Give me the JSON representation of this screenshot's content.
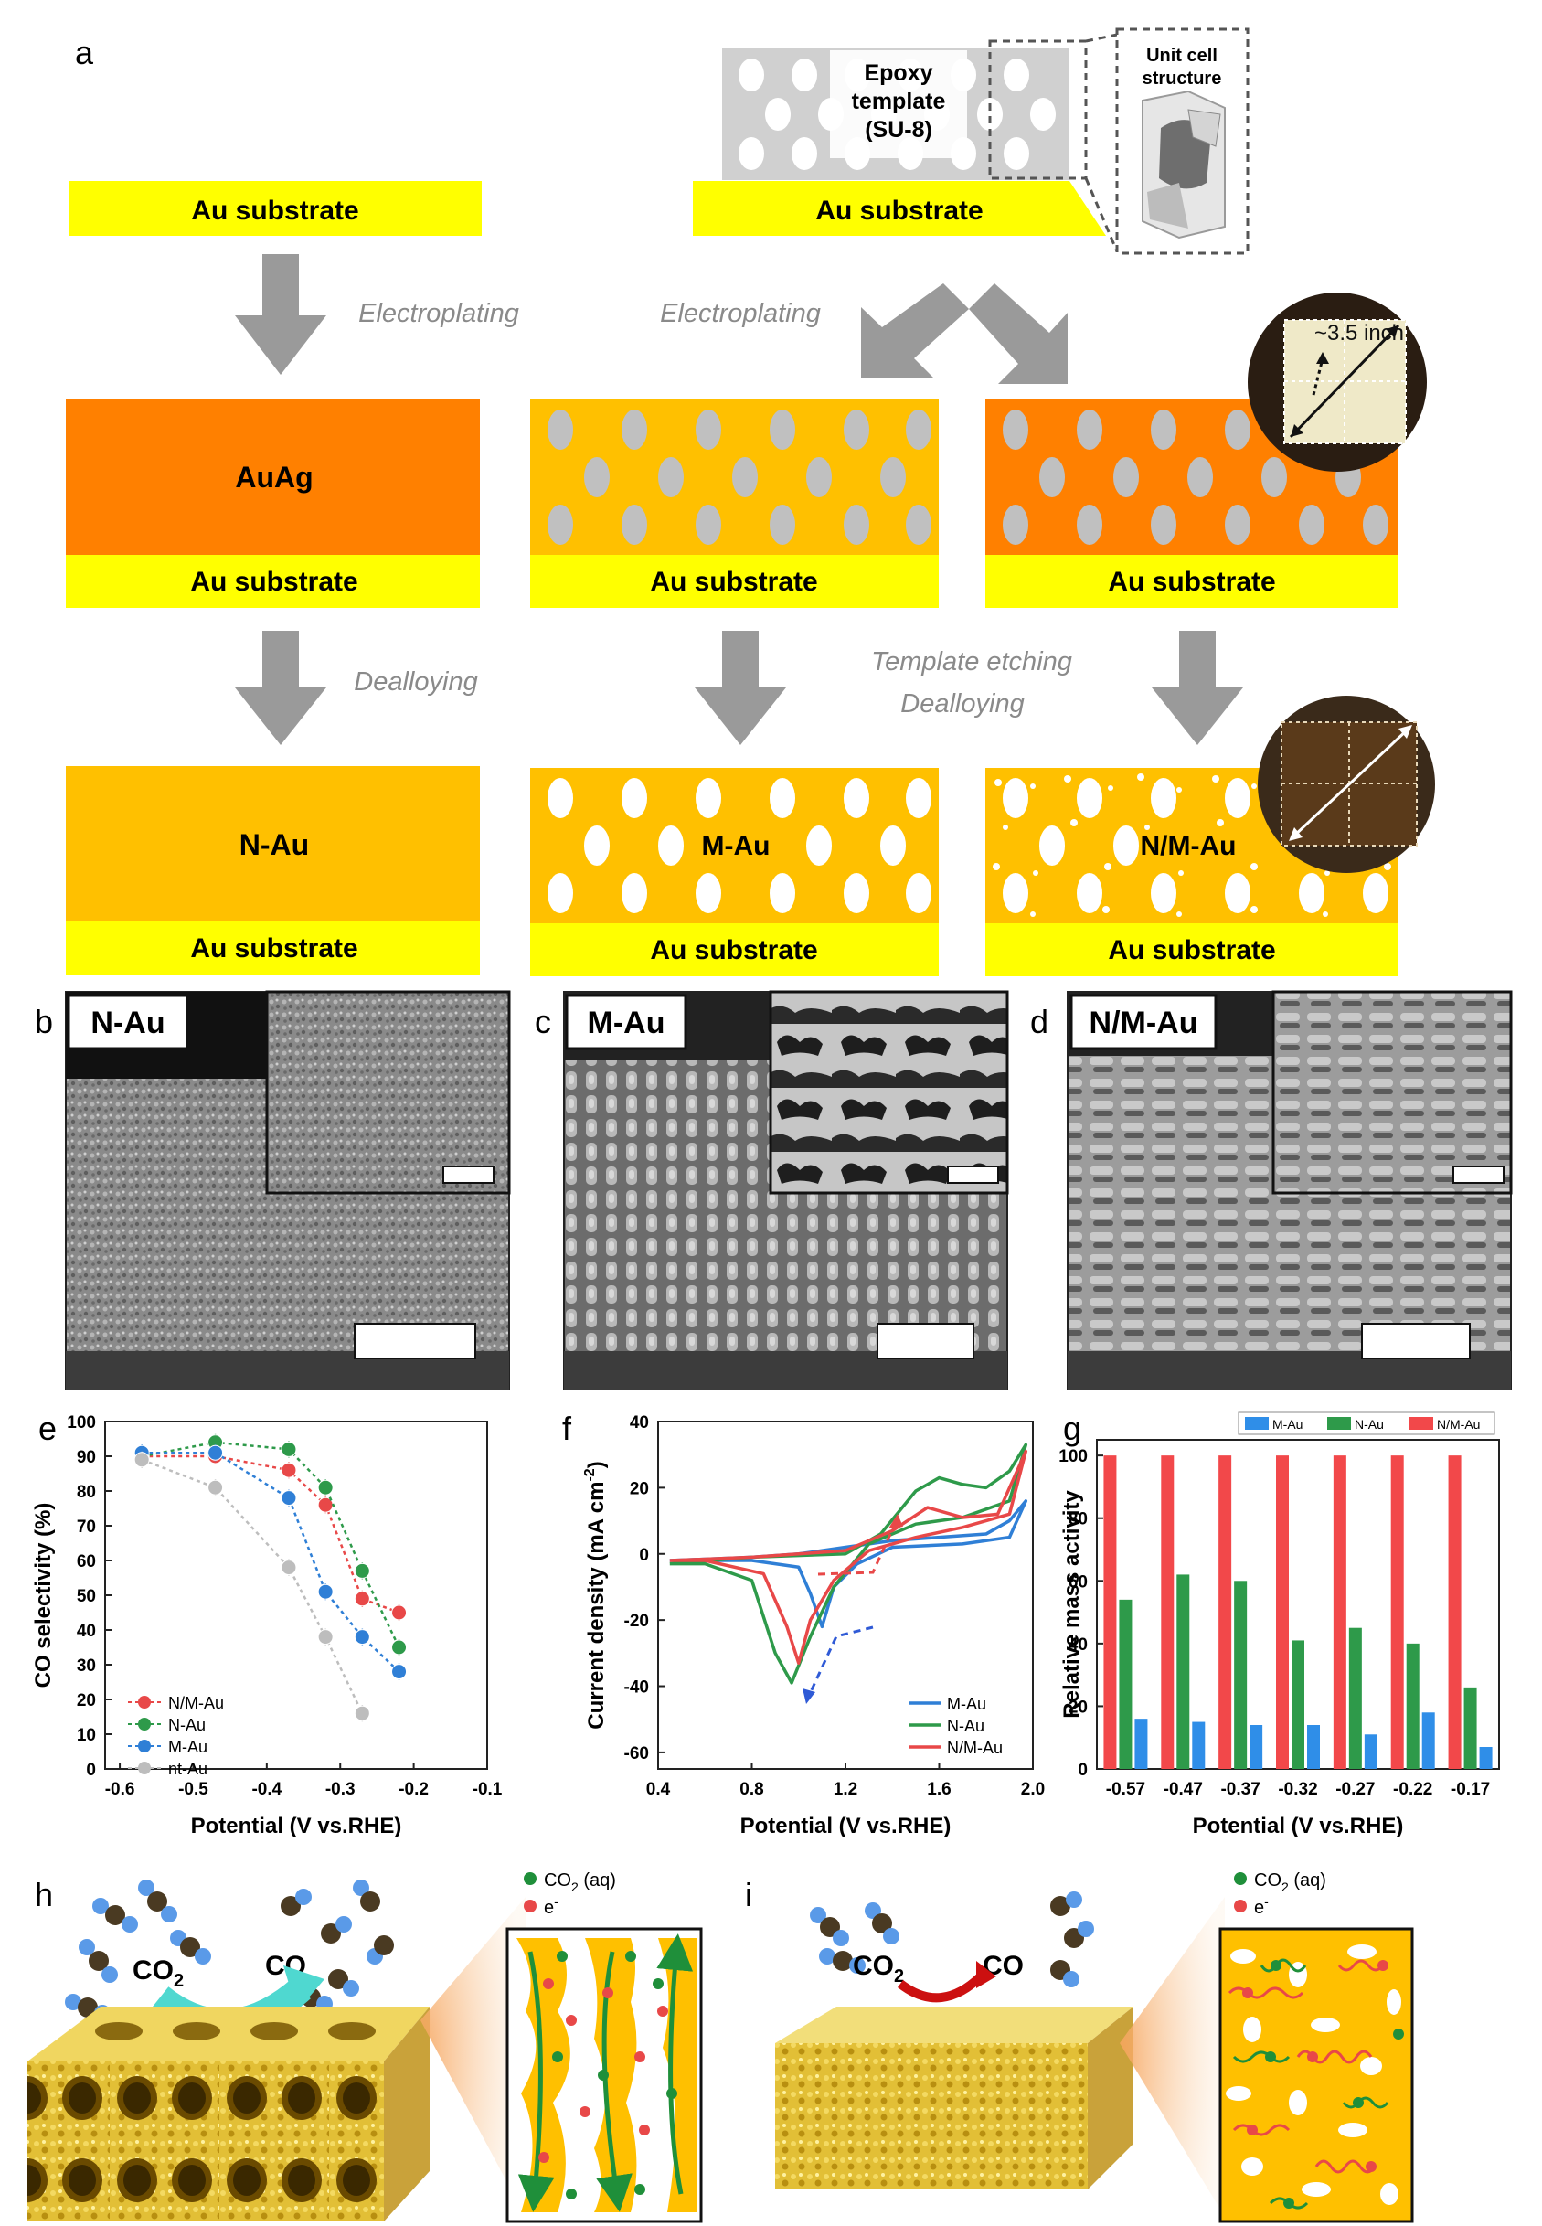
{
  "panel_letters": {
    "a": "a",
    "b": "b",
    "c": "c",
    "d": "d",
    "e": "e",
    "f": "f",
    "g": "g",
    "h": "h",
    "i": "i"
  },
  "schematic": {
    "substrate": "Au substrate",
    "template_label": [
      "Epoxy",
      "template",
      "(SU-8)"
    ],
    "unit_cell": [
      "Unit cell",
      "structure"
    ],
    "electroplating": "Electroplating",
    "dealloying": "Dealloying",
    "template_etching": [
      "Template etching",
      "Dealloying"
    ],
    "auag": "AuAg",
    "products": {
      "n": "N-Au",
      "m": "M-Au",
      "nm": "N/M-Au"
    },
    "photo_size": "~3.5 inch",
    "colors": {
      "substrate": "#ffff00",
      "auag": "#ff8000",
      "au": "#ffc000",
      "pore_gray": "#c0c0c0",
      "arrow": "#9a9a9a"
    }
  },
  "sem": {
    "b": "N-Au",
    "c": "M-Au",
    "d": "N/M-Au"
  },
  "chart_data": [
    {
      "panel": "e",
      "type": "scatter",
      "xlabel": "Potential (V vs.RHE)",
      "ylabel": "CO selectivity (%)",
      "xlim": [
        -0.62,
        -0.1
      ],
      "ylim": [
        0,
        100
      ],
      "xticks": [
        "-0.6",
        "-0.5",
        "-0.4",
        "-0.3",
        "-0.2",
        "-0.1"
      ],
      "yticks": [
        "0",
        "10",
        "20",
        "30",
        "40",
        "50",
        "60",
        "70",
        "80",
        "90",
        "100"
      ],
      "series": [
        {
          "name": "N/M-Au",
          "color": "#e84848",
          "points": [
            [
              -0.57,
              90
            ],
            [
              -0.47,
              90
            ],
            [
              -0.37,
              86
            ],
            [
              -0.32,
              76
            ],
            [
              -0.27,
              49
            ],
            [
              -0.22,
              45
            ]
          ]
        },
        {
          "name": "N-Au",
          "color": "#2e9a4a",
          "points": [
            [
              -0.57,
              90
            ],
            [
              -0.47,
              94
            ],
            [
              -0.37,
              92
            ],
            [
              -0.32,
              81
            ],
            [
              -0.27,
              57
            ],
            [
              -0.22,
              35
            ]
          ]
        },
        {
          "name": "M-Au",
          "color": "#2f7fd6",
          "points": [
            [
              -0.57,
              91
            ],
            [
              -0.47,
              91
            ],
            [
              -0.37,
              78
            ],
            [
              -0.32,
              51
            ],
            [
              -0.27,
              38
            ],
            [
              -0.22,
              28
            ]
          ]
        },
        {
          "name": "nt-Au",
          "color": "#bdbdbd",
          "points": [
            [
              -0.57,
              89
            ],
            [
              -0.47,
              81
            ],
            [
              -0.37,
              58
            ],
            [
              -0.32,
              38
            ],
            [
              -0.27,
              16
            ]
          ]
        }
      ]
    },
    {
      "panel": "f",
      "type": "line",
      "xlabel": "Potential (V vs.RHE)",
      "ylabel": "Current density (mA cm",
      "ylabel_sup": "-2",
      "ylabel_close": ")",
      "xlim": [
        0.4,
        2.0
      ],
      "ylim": [
        -65,
        40
      ],
      "xticks": [
        "0.4",
        "0.8",
        "1.2",
        "1.6",
        "2.0"
      ],
      "yticks": [
        "-60",
        "-40",
        "-20",
        "0",
        "20",
        "40"
      ],
      "series": [
        {
          "name": "M-Au",
          "color": "#2f7fd6",
          "forward": [
            [
              0.45,
              -2
            ],
            [
              0.8,
              -1
            ],
            [
              1.0,
              0
            ],
            [
              1.2,
              2
            ],
            [
              1.4,
              4
            ],
            [
              1.6,
              5
            ],
            [
              1.8,
              6
            ],
            [
              1.9,
              10
            ],
            [
              1.97,
              16
            ]
          ],
          "reverse": [
            [
              1.97,
              16
            ],
            [
              1.9,
              5
            ],
            [
              1.7,
              3
            ],
            [
              1.4,
              2
            ],
            [
              1.25,
              -3
            ],
            [
              1.15,
              -10
            ],
            [
              1.1,
              -22
            ],
            [
              1.05,
              -12
            ],
            [
              1.0,
              -4
            ],
            [
              0.8,
              -2
            ],
            [
              0.45,
              -2
            ]
          ]
        },
        {
          "name": "N-Au",
          "color": "#2e9a4a",
          "forward": [
            [
              0.45,
              -3
            ],
            [
              0.8,
              -1
            ],
            [
              1.2,
              0
            ],
            [
              1.35,
              6
            ],
            [
              1.5,
              19
            ],
            [
              1.6,
              23
            ],
            [
              1.7,
              21
            ],
            [
              1.8,
              20
            ],
            [
              1.9,
              25
            ],
            [
              1.97,
              33
            ]
          ],
          "reverse": [
            [
              1.97,
              33
            ],
            [
              1.9,
              16
            ],
            [
              1.7,
              11
            ],
            [
              1.5,
              9
            ],
            [
              1.3,
              3
            ],
            [
              1.15,
              -10
            ],
            [
              1.05,
              -25
            ],
            [
              0.97,
              -39
            ],
            [
              0.9,
              -30
            ],
            [
              0.8,
              -8
            ],
            [
              0.6,
              -3
            ],
            [
              0.45,
              -3
            ]
          ]
        },
        {
          "name": "N/M-Au",
          "color": "#e84848",
          "forward": [
            [
              0.45,
              -2
            ],
            [
              0.8,
              -1
            ],
            [
              1.2,
              1
            ],
            [
              1.4,
              7
            ],
            [
              1.55,
              14
            ],
            [
              1.7,
              11
            ],
            [
              1.85,
              12
            ],
            [
              1.97,
              31
            ]
          ],
          "reverse": [
            [
              1.97,
              31
            ],
            [
              1.9,
              12
            ],
            [
              1.7,
              8
            ],
            [
              1.5,
              5
            ],
            [
              1.3,
              1
            ],
            [
              1.15,
              -8
            ],
            [
              1.05,
              -20
            ],
            [
              1.0,
              -33
            ],
            [
              0.95,
              -22
            ],
            [
              0.85,
              -6
            ],
            [
              0.6,
              -2
            ],
            [
              0.45,
              -2
            ]
          ]
        }
      ]
    },
    {
      "panel": "g",
      "type": "bar",
      "xlabel": "Potential (V vs.RHE)",
      "ylabel": "Relative mass activity",
      "ylim": [
        0,
        105
      ],
      "yticks": [
        "0",
        "20",
        "40",
        "60",
        "80",
        "100"
      ],
      "categories": [
        "-0.57",
        "-0.47",
        "-0.37",
        "-0.32",
        "-0.27",
        "-0.22",
        "-0.17"
      ],
      "series": [
        {
          "name": "N/M-Au",
          "color": "#f2484a",
          "values": [
            100,
            100,
            100,
            100,
            100,
            100,
            100
          ]
        },
        {
          "name": "N-Au",
          "color": "#2e9a4a",
          "values": [
            54,
            62,
            60,
            41,
            45,
            40,
            26
          ]
        },
        {
          "name": "M-Au",
          "color": "#2f8ee8",
          "values": [
            16,
            15,
            14,
            14,
            11,
            18,
            7
          ]
        }
      ],
      "legend_order": [
        "M-Au",
        "N-Au",
        "N/M-Au"
      ]
    }
  ],
  "illustration": {
    "co2": "CO",
    "co2_sub": "2",
    "co": "CO",
    "legend_co2": "CO",
    "legend_co2_sub": "2",
    "legend_co2_rest": " (aq)",
    "legend_e": "e",
    "legend_e_sup": "-"
  }
}
